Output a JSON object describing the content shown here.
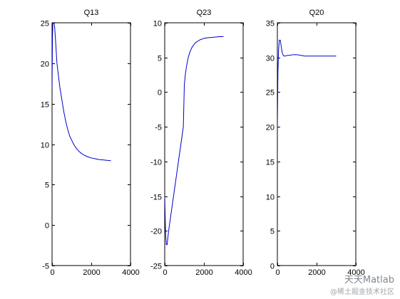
{
  "chart_data": [
    {
      "type": "line",
      "title": "Q13",
      "xlim": [
        0,
        4000
      ],
      "ylim": [
        -5,
        25
      ],
      "xticks": [
        0,
        2000,
        4000
      ],
      "yticks": [
        -5,
        0,
        5,
        10,
        15,
        20,
        25
      ],
      "series": [
        {
          "color": "#0000cc",
          "x": [
            0,
            20,
            40,
            60,
            80,
            100,
            130,
            160,
            200,
            250,
            300,
            400,
            500,
            600,
            700,
            800,
            900,
            1000,
            1100,
            1200,
            1300,
            1400,
            1500,
            1600,
            1800,
            2000,
            2200,
            2400,
            2600,
            2800,
            3000
          ],
          "y": [
            17,
            23,
            25,
            25,
            25,
            25,
            24.5,
            23.5,
            22,
            20,
            19,
            17,
            15.5,
            14,
            12.8,
            11.8,
            11,
            10.5,
            10,
            9.6,
            9.3,
            9.05,
            8.85,
            8.7,
            8.45,
            8.3,
            8.2,
            8.1,
            8.05,
            8.0,
            7.95
          ]
        }
      ]
    },
    {
      "type": "line",
      "title": "Q23",
      "xlim": [
        0,
        4000
      ],
      "ylim": [
        -25,
        10
      ],
      "xticks": [
        0,
        2000,
        4000
      ],
      "yticks": [
        -25,
        -20,
        -15,
        -10,
        -5,
        0,
        5,
        10
      ],
      "series": [
        {
          "color": "#0000cc",
          "x": [
            0,
            40,
            80,
            120,
            160,
            200,
            250,
            300,
            400,
            500,
            600,
            700,
            800,
            900,
            950,
            1000,
            1050,
            1100,
            1150,
            1200,
            1300,
            1400,
            1500,
            1600,
            1800,
            2000,
            2200,
            2400,
            2600,
            2800,
            3000
          ],
          "y": [
            -15,
            -20,
            -22,
            -22,
            -21,
            -20,
            -19,
            -18,
            -16,
            -14,
            -12,
            -10,
            -8,
            -6,
            -5,
            1,
            2.5,
            3.5,
            4.3,
            5,
            5.9,
            6.5,
            6.9,
            7.2,
            7.55,
            7.75,
            7.85,
            7.9,
            7.95,
            8.0,
            8.0
          ]
        }
      ]
    },
    {
      "type": "line",
      "title": "Q20",
      "xlim": [
        0,
        4000
      ],
      "ylim": [
        0,
        35
      ],
      "xticks": [
        0,
        2000,
        4000
      ],
      "yticks": [
        0,
        5,
        10,
        15,
        20,
        25,
        30,
        35
      ],
      "series": [
        {
          "color": "#0000cc",
          "x": [
            0,
            30,
            60,
            100,
            150,
            200,
            250,
            300,
            350,
            400,
            500,
            600,
            800,
            1000,
            1200,
            1400,
            1600,
            1800,
            2000,
            2200,
            2400,
            2600,
            2800,
            3000
          ],
          "y": [
            20,
            28,
            31,
            32.5,
            32.5,
            31.5,
            30.7,
            30.3,
            30.2,
            30.2,
            30.3,
            30.3,
            30.4,
            30.4,
            30.3,
            30.2,
            30.2,
            30.2,
            30.2,
            30.2,
            30.2,
            30.2,
            30.2,
            30.2
          ]
        }
      ]
    }
  ],
  "watermark": {
    "main": "天天Matlab",
    "sub": "@稀土掘金技术社区"
  }
}
